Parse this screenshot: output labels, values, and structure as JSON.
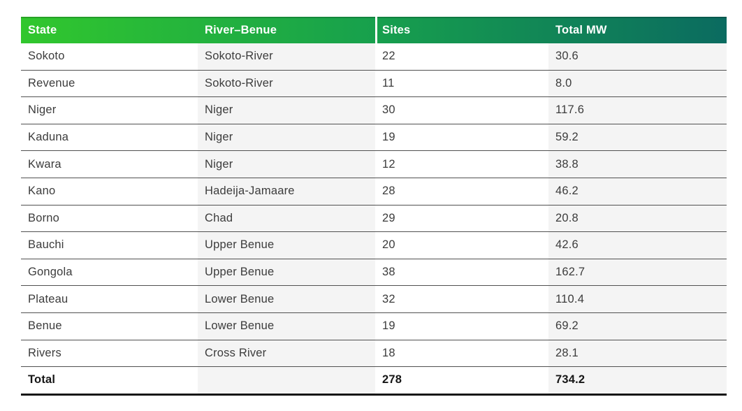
{
  "chart_data": {
    "type": "table",
    "columns": [
      "State",
      "River–Benue",
      "Sites",
      "Total MW"
    ],
    "rows": [
      [
        "Sokoto",
        "Sokoto-River",
        "22",
        "30.6"
      ],
      [
        "Revenue",
        "Sokoto-River",
        "11",
        "8.0"
      ],
      [
        "Niger",
        "Niger",
        "30",
        "117.6"
      ],
      [
        "Kaduna",
        "Niger",
        "19",
        "59.2"
      ],
      [
        "Kwara",
        "Niger",
        "12",
        "38.8"
      ],
      [
        "Kano",
        "Hadeija-Jamaare",
        "28",
        "46.2"
      ],
      [
        "Borno",
        "Chad",
        "29",
        "20.8"
      ],
      [
        "Bauchi",
        "Upper Benue",
        "20",
        "42.6"
      ],
      [
        "Gongola",
        "Upper Benue",
        "38",
        "162.7"
      ],
      [
        "Plateau",
        "Lower Benue",
        "32",
        "110.4"
      ],
      [
        "Benue",
        "Lower Benue",
        "19",
        "69.2"
      ],
      [
        "Rivers",
        "Cross River",
        "18",
        "28.1"
      ]
    ],
    "total_row": [
      "Total",
      "",
      "278",
      "734.2"
    ],
    "layout_hints": {
      "shaded_columns": [
        2,
        4
      ],
      "header_divider_before_column": 3,
      "grid": "horizontal-rules-only"
    }
  },
  "colors": {
    "header_gradient_left": "#31c72d",
    "header_gradient_mid": "#17a04d",
    "header_gradient_right": "#0b6b60",
    "header_text": "#ffffff",
    "shaded_column_bg": "#f4f4f4",
    "row_rule": "#515151",
    "bottom_rule": "#161616",
    "body_text": "#3c3c3c"
  }
}
